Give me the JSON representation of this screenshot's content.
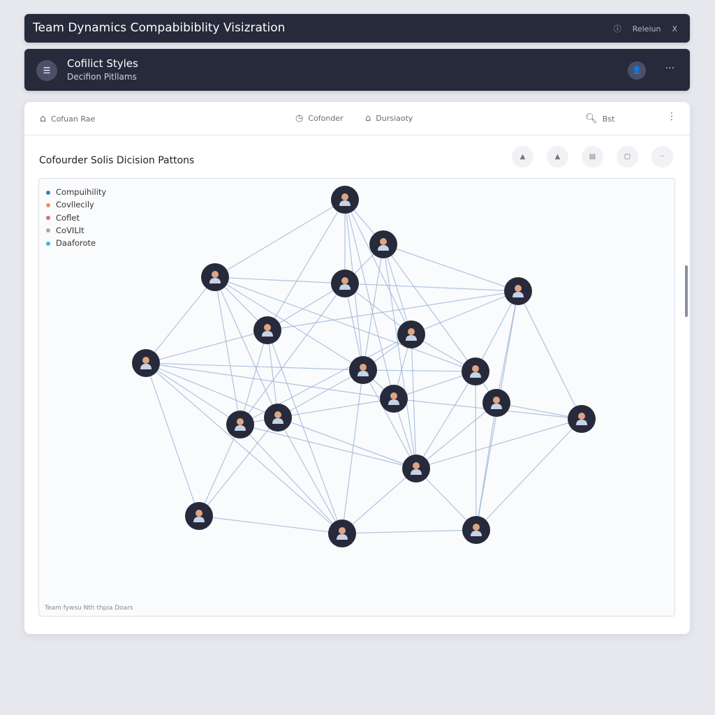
{
  "window": {
    "title": "Team Dynamics Compabibiblity Visizration",
    "release_label": "Releiun",
    "close_label": "X",
    "info_icon": "info-icon"
  },
  "header": {
    "title": "Cofilict Styles",
    "subtitle": "Decifion Pitllams",
    "menu_icon": "menu-icon",
    "more_label": "···"
  },
  "nav": {
    "home": "Cofuan Rae",
    "cofounder": "Cofonder",
    "diversity": "Dursiaoty",
    "search": "Bst",
    "more": "⋮"
  },
  "card": {
    "title": "Cofourder Solis Dicision Pattons",
    "tools": [
      "user",
      "user",
      "doc",
      "square",
      "more"
    ]
  },
  "legend": [
    {
      "label": "Compuihility",
      "color": "#4a7ab5"
    },
    {
      "label": "Covllecily",
      "color": "#e8906a"
    },
    {
      "label": "Coflet",
      "color": "#d96a8a"
    },
    {
      "label": "CoVILIt",
      "color": "#b3a88a"
    },
    {
      "label": "Daaforote",
      "color": "#3bb8e0"
    }
  ],
  "footer": "Team fywsu Nth thpia Doars",
  "colors": {
    "node": "#262a3b",
    "edge": "#9cb6d8",
    "skin": "#e0a482",
    "shirt": "#c6d3e6"
  },
  "chart_data": {
    "type": "network",
    "node_count": 19,
    "edges": [
      [
        0,
        1
      ],
      [
        0,
        2
      ],
      [
        0,
        3
      ],
      [
        0,
        5
      ],
      [
        0,
        8
      ],
      [
        0,
        10
      ],
      [
        0,
        6
      ],
      [
        1,
        3
      ],
      [
        1,
        4
      ],
      [
        1,
        8
      ],
      [
        1,
        9
      ],
      [
        1,
        15
      ],
      [
        1,
        6
      ],
      [
        2,
        3
      ],
      [
        2,
        5
      ],
      [
        2,
        7
      ],
      [
        2,
        12
      ],
      [
        2,
        13
      ],
      [
        2,
        8
      ],
      [
        2,
        9
      ],
      [
        3,
        4
      ],
      [
        3,
        5
      ],
      [
        3,
        6
      ],
      [
        3,
        8
      ],
      [
        3,
        12
      ],
      [
        4,
        6
      ],
      [
        4,
        9
      ],
      [
        4,
        11
      ],
      [
        4,
        14
      ],
      [
        4,
        18
      ],
      [
        4,
        5
      ],
      [
        5,
        7
      ],
      [
        5,
        13
      ],
      [
        5,
        12
      ],
      [
        5,
        17
      ],
      [
        6,
        8
      ],
      [
        6,
        9
      ],
      [
        6,
        10
      ],
      [
        6,
        15
      ],
      [
        7,
        8
      ],
      [
        7,
        12
      ],
      [
        7,
        13
      ],
      [
        7,
        16
      ],
      [
        7,
        17
      ],
      [
        7,
        10
      ],
      [
        8,
        9
      ],
      [
        8,
        10
      ],
      [
        8,
        13
      ],
      [
        8,
        15
      ],
      [
        8,
        17
      ],
      [
        9,
        10
      ],
      [
        9,
        11
      ],
      [
        9,
        15
      ],
      [
        9,
        18
      ],
      [
        10,
        13
      ],
      [
        10,
        14
      ],
      [
        10,
        15
      ],
      [
        11,
        14
      ],
      [
        11,
        15
      ],
      [
        11,
        18
      ],
      [
        12,
        13
      ],
      [
        12,
        16
      ],
      [
        12,
        17
      ],
      [
        13,
        15
      ],
      [
        13,
        16
      ],
      [
        13,
        17
      ],
      [
        14,
        15
      ],
      [
        14,
        18
      ],
      [
        15,
        17
      ],
      [
        15,
        18
      ],
      [
        16,
        17
      ],
      [
        17,
        18
      ],
      [
        12,
        15
      ],
      [
        6,
        12
      ]
    ]
  }
}
